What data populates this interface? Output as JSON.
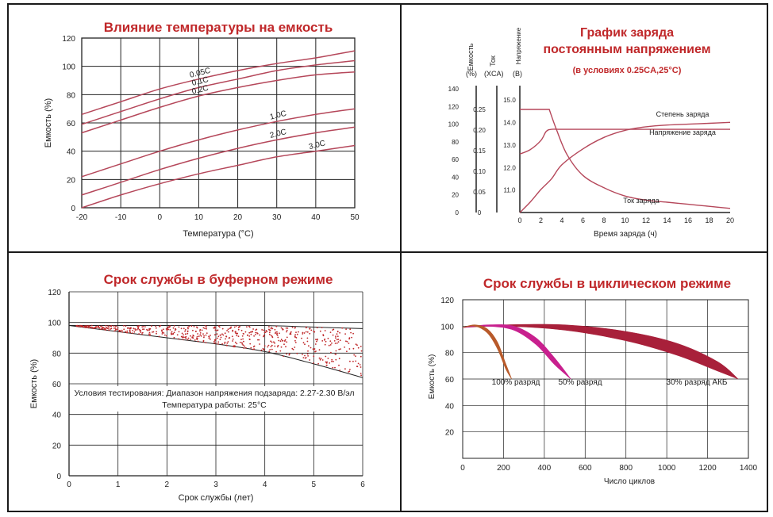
{
  "colors": {
    "title": "#c0282a",
    "curve": "#b5475a",
    "grid": "#222222",
    "text": "#222222",
    "dots": "#c0282a",
    "cyc100": "#b85a2a",
    "cyc50": "#c8208e",
    "cyc30": "#a8203a"
  },
  "chart_data": [
    {
      "type": "line",
      "title": "Влияние температуры на емкость",
      "xlabel": "Температура (°C)",
      "ylabel": "Емкость (%)",
      "xlim": [
        -20,
        50
      ],
      "ylim": [
        0,
        120
      ],
      "x_ticks": [
        "-20",
        "-10",
        "0",
        "10",
        "20",
        "30",
        "40",
        "50"
      ],
      "y_ticks": [
        "0",
        "20",
        "40",
        "60",
        "80",
        "100",
        "120"
      ],
      "grid": true,
      "series": [
        {
          "name": "0.05C",
          "x": [
            -20,
            -10,
            0,
            10,
            20,
            30,
            40,
            50
          ],
          "y": [
            66,
            75,
            84,
            91,
            97,
            102,
            106,
            111
          ]
        },
        {
          "name": "0.1C",
          "x": [
            -20,
            -10,
            0,
            10,
            20,
            30,
            40,
            50
          ],
          "y": [
            59,
            68,
            77,
            85,
            91,
            97,
            101,
            104
          ]
        },
        {
          "name": "0.2C",
          "x": [
            -20,
            -10,
            0,
            10,
            20,
            30,
            40,
            50
          ],
          "y": [
            53,
            62,
            71,
            79,
            85,
            90,
            94,
            96
          ]
        },
        {
          "name": "1.0C",
          "x": [
            -20,
            -10,
            0,
            10,
            20,
            30,
            40,
            50
          ],
          "y": [
            22,
            31,
            40,
            48,
            55,
            61,
            66,
            70
          ]
        },
        {
          "name": "2.0C",
          "x": [
            -20,
            -10,
            0,
            10,
            20,
            30,
            40,
            50
          ],
          "y": [
            9,
            18,
            27,
            35,
            42,
            48,
            53,
            57
          ]
        },
        {
          "name": "3.0C",
          "x": [
            -20,
            -10,
            0,
            10,
            20,
            30,
            40,
            50
          ],
          "y": [
            0,
            9,
            17,
            24,
            30,
            36,
            40,
            44
          ]
        }
      ]
    },
    {
      "type": "line",
      "title": "График заряда",
      "subtitle": "постоянным напряжением",
      "note": "(в условиях 0.25CA,25°C)",
      "xlabel": "Время заряда (ч)",
      "axis_headers": [
        {
          "name": "Емкость",
          "unit": "(%)"
        },
        {
          "name": "Ток",
          "unit": "(XCA)"
        },
        {
          "name": "Напряжение",
          "unit": "(В)"
        }
      ],
      "xlim": [
        0,
        20
      ],
      "x_ticks": [
        "0",
        "2",
        "4",
        "6",
        "8",
        "10",
        "12",
        "14",
        "16",
        "18",
        "20"
      ],
      "capacity_ticks": [
        "0",
        "20",
        "40",
        "60",
        "80",
        "100",
        "120",
        "140"
      ],
      "current_ticks": [
        "0",
        "0.05",
        "0.10",
        "0.15",
        "0.20",
        "0.25"
      ],
      "voltage_ticks": [
        "11.0",
        "12.0",
        "13.0",
        "14.0",
        "15.0"
      ],
      "ylim_capacity": [
        0,
        140
      ],
      "ylim_current": [
        0,
        0.3
      ],
      "ylim_voltage": [
        10,
        15.5
      ],
      "series": [
        {
          "name": "Степень заряда",
          "axis": "capacity",
          "x": [
            0,
            1,
            2,
            3,
            4,
            6,
            8,
            10,
            12,
            14,
            16,
            18,
            20
          ],
          "y": [
            0,
            12,
            26,
            38,
            54,
            72,
            85,
            93,
            97,
            99,
            100,
            101,
            102
          ]
        },
        {
          "name": "Напряжение заряда",
          "axis": "voltage",
          "x": [
            0,
            1,
            2,
            2.5,
            3,
            4,
            8,
            12,
            16,
            20
          ],
          "y": [
            12.6,
            12.8,
            13.2,
            13.6,
            13.7,
            13.7,
            13.7,
            13.7,
            13.7,
            13.7
          ]
        },
        {
          "name": "Ток заряда",
          "axis": "current",
          "x": [
            0,
            2.8,
            3.5,
            4.5,
            6,
            8,
            10,
            12,
            14,
            16,
            18,
            20
          ],
          "y": [
            0.25,
            0.25,
            0.2,
            0.14,
            0.09,
            0.06,
            0.04,
            0.03,
            0.025,
            0.02,
            0.015,
            0.01
          ]
        }
      ]
    },
    {
      "type": "area",
      "title": "Срок службы в буферном режиме",
      "xlabel": "Срок службы (лет)",
      "ylabel": "Емкость (%)",
      "xlim": [
        0,
        6
      ],
      "ylim": [
        0,
        120
      ],
      "x_ticks": [
        "0",
        "1",
        "2",
        "3",
        "4",
        "5",
        "6"
      ],
      "y_ticks": [
        "0",
        "20",
        "40",
        "60",
        "80",
        "100",
        "120"
      ],
      "band": {
        "x": [
          0,
          1,
          2,
          3,
          4,
          5,
          6
        ],
        "upper": [
          98,
          98,
          98,
          98,
          98,
          97,
          96
        ],
        "lower": [
          98,
          94,
          90,
          86,
          81,
          73,
          64
        ]
      },
      "annotation_line1": "Условия тестирования: Диапазон напряжения подзаряда: 2.27-2.30 В/эл",
      "annotation_line2": "Температура работы: 25°C"
    },
    {
      "type": "area",
      "title": "Срок службы в циклическом режиме",
      "xlabel": "Число циклов",
      "ylabel": "Емкость (%)",
      "xlim": [
        0,
        1400
      ],
      "ylim": [
        0,
        120
      ],
      "x_ticks": [
        "0",
        "200",
        "400",
        "600",
        "800",
        "1000",
        "1200",
        "1400"
      ],
      "y_ticks": [
        "20",
        "40",
        "60",
        "80",
        "100",
        "120"
      ],
      "series": [
        {
          "name": "100% разряд",
          "x": [
            0,
            60,
            120,
            170,
            210,
            240
          ],
          "upper": [
            99,
            101,
            98,
            88,
            72,
            60
          ],
          "lower": [
            99,
            100,
            95,
            83,
            68,
            60
          ]
        },
        {
          "name": "50% разряд",
          "x": [
            0,
            120,
            250,
            360,
            450,
            530
          ],
          "upper": [
            99,
            101,
            100,
            91,
            76,
            60
          ],
          "lower": [
            99,
            100,
            97,
            86,
            71,
            60
          ]
        },
        {
          "name": "30% разряд АКБ",
          "x": [
            0,
            200,
            500,
            800,
            1050,
            1250,
            1350
          ],
          "upper": [
            99,
            101,
            101,
            96,
            87,
            73,
            60
          ],
          "lower": [
            99,
            100,
            97,
            89,
            78,
            66,
            60
          ]
        }
      ]
    }
  ]
}
